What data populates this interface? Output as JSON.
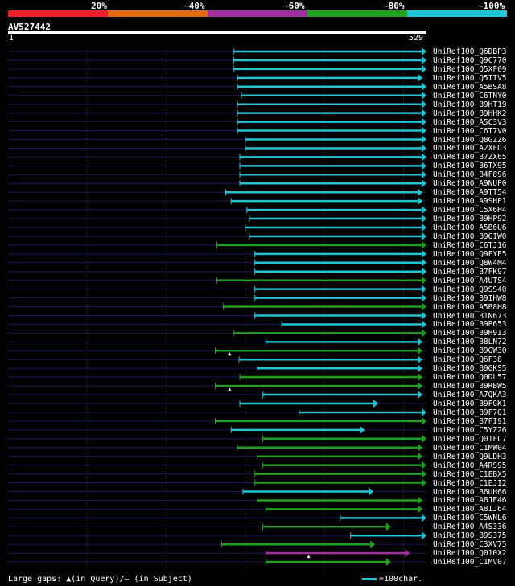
{
  "legend": {
    "labels": [
      "20%",
      "~40%",
      "~60%",
      "~80%",
      "~100%"
    ],
    "colors": [
      "#e8202a",
      "#e06a14",
      "#a030a0",
      "#20a020",
      "#22c4d4"
    ]
  },
  "query": {
    "name": "AV527442",
    "start_label": "1",
    "end_label": "529"
  },
  "footer": {
    "gaps_text": "Large gaps: ▲(in Query)/— (in Subject)",
    "scale_text": "=100char."
  },
  "chart_data": {
    "type": "alignment",
    "query_length": 529,
    "gridlines": [
      100,
      200,
      300,
      400,
      500
    ],
    "hits": [
      {
        "name": "UniRef100_Q6DBP3",
        "start": 285,
        "end": 529,
        "identity": "100",
        "gaps": []
      },
      {
        "name": "UniRef100_Q9C770",
        "start": 285,
        "end": 529,
        "identity": "100",
        "gaps": []
      },
      {
        "name": "UniRef100_Q5XF09",
        "start": 285,
        "end": 529,
        "identity": "100",
        "gaps": []
      },
      {
        "name": "UniRef100_Q5IIV5",
        "start": 290,
        "end": 524,
        "identity": "100",
        "gaps": []
      },
      {
        "name": "UniRef100_A5BSA8",
        "start": 290,
        "end": 529,
        "identity": "100",
        "gaps": []
      },
      {
        "name": "UniRef100_C6TNY0",
        "start": 295,
        "end": 529,
        "identity": "100",
        "gaps": []
      },
      {
        "name": "UniRef100_B9HT19",
        "start": 290,
        "end": 529,
        "identity": "100",
        "gaps": []
      },
      {
        "name": "UniRef100_B9HHK2",
        "start": 290,
        "end": 529,
        "identity": "100",
        "gaps": []
      },
      {
        "name": "UniRef100_A5C3V3",
        "start": 290,
        "end": 529,
        "identity": "100",
        "gaps": []
      },
      {
        "name": "UniRef100_C6T7V0",
        "start": 290,
        "end": 529,
        "identity": "100",
        "gaps": []
      },
      {
        "name": "UniRef100_Q8GZZ6",
        "start": 300,
        "end": 529,
        "identity": "100",
        "gaps": []
      },
      {
        "name": "UniRef100_A2XFD3",
        "start": 300,
        "end": 529,
        "identity": "100",
        "gaps": []
      },
      {
        "name": "UniRef100_B7ZX65",
        "start": 293,
        "end": 529,
        "identity": "100",
        "gaps": []
      },
      {
        "name": "UniRef100_B6TX95",
        "start": 293,
        "end": 529,
        "identity": "100",
        "gaps": []
      },
      {
        "name": "UniRef100_B4F896",
        "start": 293,
        "end": 529,
        "identity": "100",
        "gaps": []
      },
      {
        "name": "UniRef100_A9NUP0",
        "start": 293,
        "end": 529,
        "identity": "100",
        "gaps": []
      },
      {
        "name": "UniRef100_A9TT54",
        "start": 275,
        "end": 524,
        "identity": "100",
        "gaps": []
      },
      {
        "name": "UniRef100_A9SHP1",
        "start": 282,
        "end": 524,
        "identity": "100",
        "gaps": []
      },
      {
        "name": "UniRef100_C5X6H4",
        "start": 302,
        "end": 529,
        "identity": "100",
        "gaps": []
      },
      {
        "name": "UniRef100_B9HP92",
        "start": 305,
        "end": 529,
        "identity": "100",
        "gaps": []
      },
      {
        "name": "UniRef100_A5B6U6",
        "start": 300,
        "end": 529,
        "identity": "100",
        "gaps": []
      },
      {
        "name": "UniRef100_B9GIW0",
        "start": 305,
        "end": 529,
        "identity": "100",
        "gaps": []
      },
      {
        "name": "UniRef100_C6TJ16",
        "start": 264,
        "end": 529,
        "identity": "80",
        "gaps": []
      },
      {
        "name": "UniRef100_Q9FYE5",
        "start": 312,
        "end": 529,
        "identity": "100",
        "gaps": []
      },
      {
        "name": "UniRef100_Q8W4M4",
        "start": 312,
        "end": 529,
        "identity": "100",
        "gaps": []
      },
      {
        "name": "UniRef100_B7FK97",
        "start": 312,
        "end": 529,
        "identity": "100",
        "gaps": []
      },
      {
        "name": "UniRef100_A4UTS4",
        "start": 264,
        "end": 529,
        "identity": "80",
        "gaps": []
      },
      {
        "name": "UniRef100_Q9SS40",
        "start": 312,
        "end": 529,
        "identity": "100",
        "gaps": []
      },
      {
        "name": "UniRef100_B9IHW8",
        "start": 312,
        "end": 529,
        "identity": "100",
        "gaps": []
      },
      {
        "name": "UniRef100_A5B8H8",
        "start": 272,
        "end": 529,
        "identity": "80",
        "gaps": []
      },
      {
        "name": "UniRef100_B1N673",
        "start": 312,
        "end": 529,
        "identity": "100",
        "gaps": []
      },
      {
        "name": "UniRef100_B9P653",
        "start": 346,
        "end": 529,
        "identity": "100",
        "gaps": []
      },
      {
        "name": "UniRef100_B9H9I3",
        "start": 285,
        "end": 529,
        "identity": "80",
        "gaps": []
      },
      {
        "name": "UniRef100_B8LN72",
        "start": 326,
        "end": 524,
        "identity": "100",
        "gaps": []
      },
      {
        "name": "UniRef100_B9GW30",
        "start": 262,
        "end": 524,
        "identity": "80",
        "gaps": [
          {
            "pos": 280,
            "type": "query"
          }
        ]
      },
      {
        "name": "UniRef100_Q6F38",
        "start": 292,
        "end": 524,
        "identity": "100",
        "gaps": []
      },
      {
        "name": "UniRef100_B9GKS5",
        "start": 315,
        "end": 524,
        "identity": "100",
        "gaps": []
      },
      {
        "name": "UniRef100_Q0DL57",
        "start": 293,
        "end": 524,
        "identity": "80",
        "gaps": []
      },
      {
        "name": "UniRef100_B9RBW5",
        "start": 262,
        "end": 524,
        "identity": "80",
        "gaps": [
          {
            "pos": 280,
            "type": "query"
          }
        ]
      },
      {
        "name": "UniRef100_A7QKA3",
        "start": 322,
        "end": 524,
        "identity": "100",
        "gaps": []
      },
      {
        "name": "UniRef100_B9FGK1",
        "start": 293,
        "end": 468,
        "identity": "100",
        "gaps": []
      },
      {
        "name": "UniRef100_B9F7Q1",
        "start": 368,
        "end": 529,
        "identity": "100",
        "gaps": []
      },
      {
        "name": "UniRef100_B7FI91",
        "start": 262,
        "end": 529,
        "identity": "80",
        "gaps": []
      },
      {
        "name": "UniRef100_C5YZ26",
        "start": 282,
        "end": 451,
        "identity": "100",
        "gaps": []
      },
      {
        "name": "UniRef100_Q01FC7",
        "start": 322,
        "end": 529,
        "identity": "80",
        "gaps": []
      },
      {
        "name": "UniRef100_C1MW04",
        "start": 290,
        "end": 524,
        "identity": "80",
        "gaps": []
      },
      {
        "name": "UniRef100_Q9LDH3",
        "start": 315,
        "end": 524,
        "identity": "80",
        "gaps": []
      },
      {
        "name": "UniRef100_A4RS95",
        "start": 322,
        "end": 529,
        "identity": "80",
        "gaps": []
      },
      {
        "name": "UniRef100_C1EBX5",
        "start": 312,
        "end": 529,
        "identity": "80",
        "gaps": []
      },
      {
        "name": "UniRef100_C1EJI2",
        "start": 312,
        "end": 529,
        "identity": "80",
        "gaps": []
      },
      {
        "name": "UniRef100_B6UH66",
        "start": 297,
        "end": 462,
        "identity": "100",
        "gaps": []
      },
      {
        "name": "UniRef100_A8JE46",
        "start": 315,
        "end": 524,
        "identity": "80",
        "gaps": []
      },
      {
        "name": "UniRef100_A8IJ64",
        "start": 326,
        "end": 524,
        "identity": "80",
        "gaps": []
      },
      {
        "name": "UniRef100_C5WNL6",
        "start": 420,
        "end": 529,
        "identity": "100",
        "gaps": []
      },
      {
        "name": "UniRef100_A4S336",
        "start": 322,
        "end": 484,
        "identity": "80",
        "gaps": []
      },
      {
        "name": "UniRef100_B9S375",
        "start": 433,
        "end": 529,
        "identity": "100",
        "gaps": []
      },
      {
        "name": "UniRef100_C3XV75",
        "start": 270,
        "end": 464,
        "identity": "80",
        "gaps": []
      },
      {
        "name": "UniRef100_Q010X2",
        "start": 326,
        "end": 508,
        "identity": "60",
        "gaps": [
          {
            "pos": 380,
            "type": "query"
          }
        ]
      },
      {
        "name": "UniRef100_C1MV07",
        "start": 326,
        "end": 484,
        "identity": "80",
        "gaps": []
      }
    ]
  }
}
